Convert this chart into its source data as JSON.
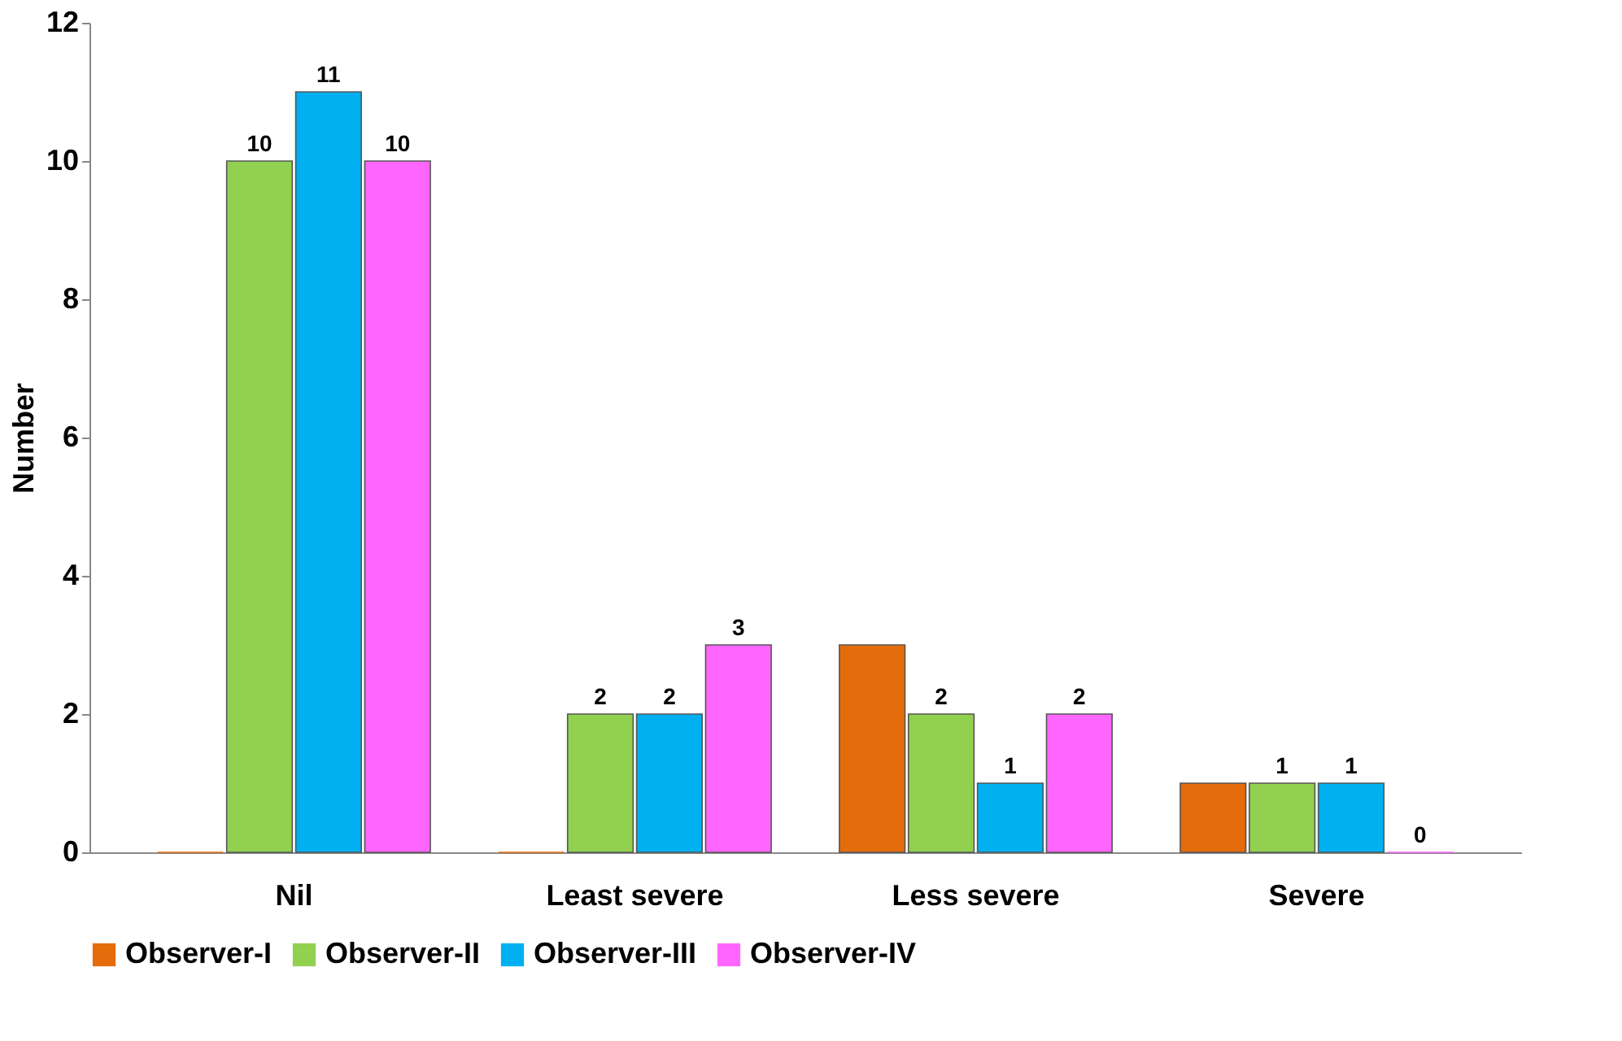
{
  "chart_data": {
    "type": "bar",
    "ylabel": "Number",
    "categories": [
      "Nil",
      "Least severe",
      "Less severe",
      "Severe"
    ],
    "series": [
      {
        "name": "Observer-I",
        "color": "#e46c0a",
        "values": [
          0,
          0,
          3,
          1
        ],
        "value_labels": [
          null,
          null,
          null,
          null
        ]
      },
      {
        "name": "Observer-II",
        "color": "#92d050",
        "values": [
          10,
          2,
          2,
          1
        ],
        "value_labels": [
          "10",
          "2",
          "2",
          "1"
        ]
      },
      {
        "name": "Observer-III",
        "color": "#00b0f0",
        "values": [
          11,
          2,
          1,
          1
        ],
        "value_labels": [
          "11",
          "2",
          "1",
          "1"
        ]
      },
      {
        "name": "Observer-IV",
        "color": "#ff66ff",
        "values": [
          10,
          3,
          2,
          0
        ],
        "value_labels": [
          "10",
          "3",
          "2",
          "0"
        ]
      }
    ],
    "ylim": [
      0,
      12
    ],
    "yticks": [
      0,
      2,
      4,
      6,
      8,
      10,
      12
    ],
    "grid": false,
    "legend": "bottom"
  }
}
